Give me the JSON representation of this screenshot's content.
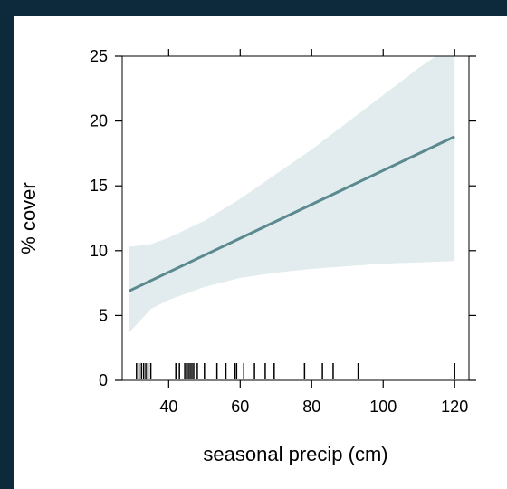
{
  "chart_data": {
    "type": "line",
    "title": "",
    "xlabel": "seasonal precip (cm)",
    "ylabel": "% cover",
    "xlim": [
      27,
      124
    ],
    "ylim": [
      0,
      25
    ],
    "x_ticks": [
      40,
      60,
      80,
      100,
      120
    ],
    "y_ticks": [
      0,
      5,
      10,
      15,
      20,
      25
    ],
    "grid": false,
    "series": [
      {
        "type": "line",
        "x": [
          29,
          120
        ],
        "y": [
          6.9,
          18.8
        ]
      }
    ],
    "confidence_band": {
      "x": [
        29,
        35,
        40,
        50,
        60,
        70,
        80,
        90,
        100,
        110,
        120
      ],
      "lower": [
        3.7,
        5.5,
        6.2,
        7.2,
        7.9,
        8.3,
        8.6,
        8.8,
        9.0,
        9.1,
        9.2
      ],
      "upper": [
        10.3,
        10.5,
        11.0,
        12.3,
        14.0,
        15.9,
        17.8,
        19.9,
        22.0,
        24.1,
        26.0
      ]
    },
    "rug_x": [
      31,
      31.7,
      32.4,
      33,
      33.6,
      34.2,
      35,
      42,
      43,
      44.5,
      45,
      45.5,
      46,
      46.5,
      47,
      48,
      50,
      53.5,
      56,
      58.5,
      59,
      61,
      64,
      67,
      69.5,
      78,
      83,
      86,
      93,
      120
    ],
    "colors": {
      "line": "#5a8a8f",
      "band": "#e2ebed",
      "rug": "#000000",
      "background": "#0d2a3d"
    }
  }
}
